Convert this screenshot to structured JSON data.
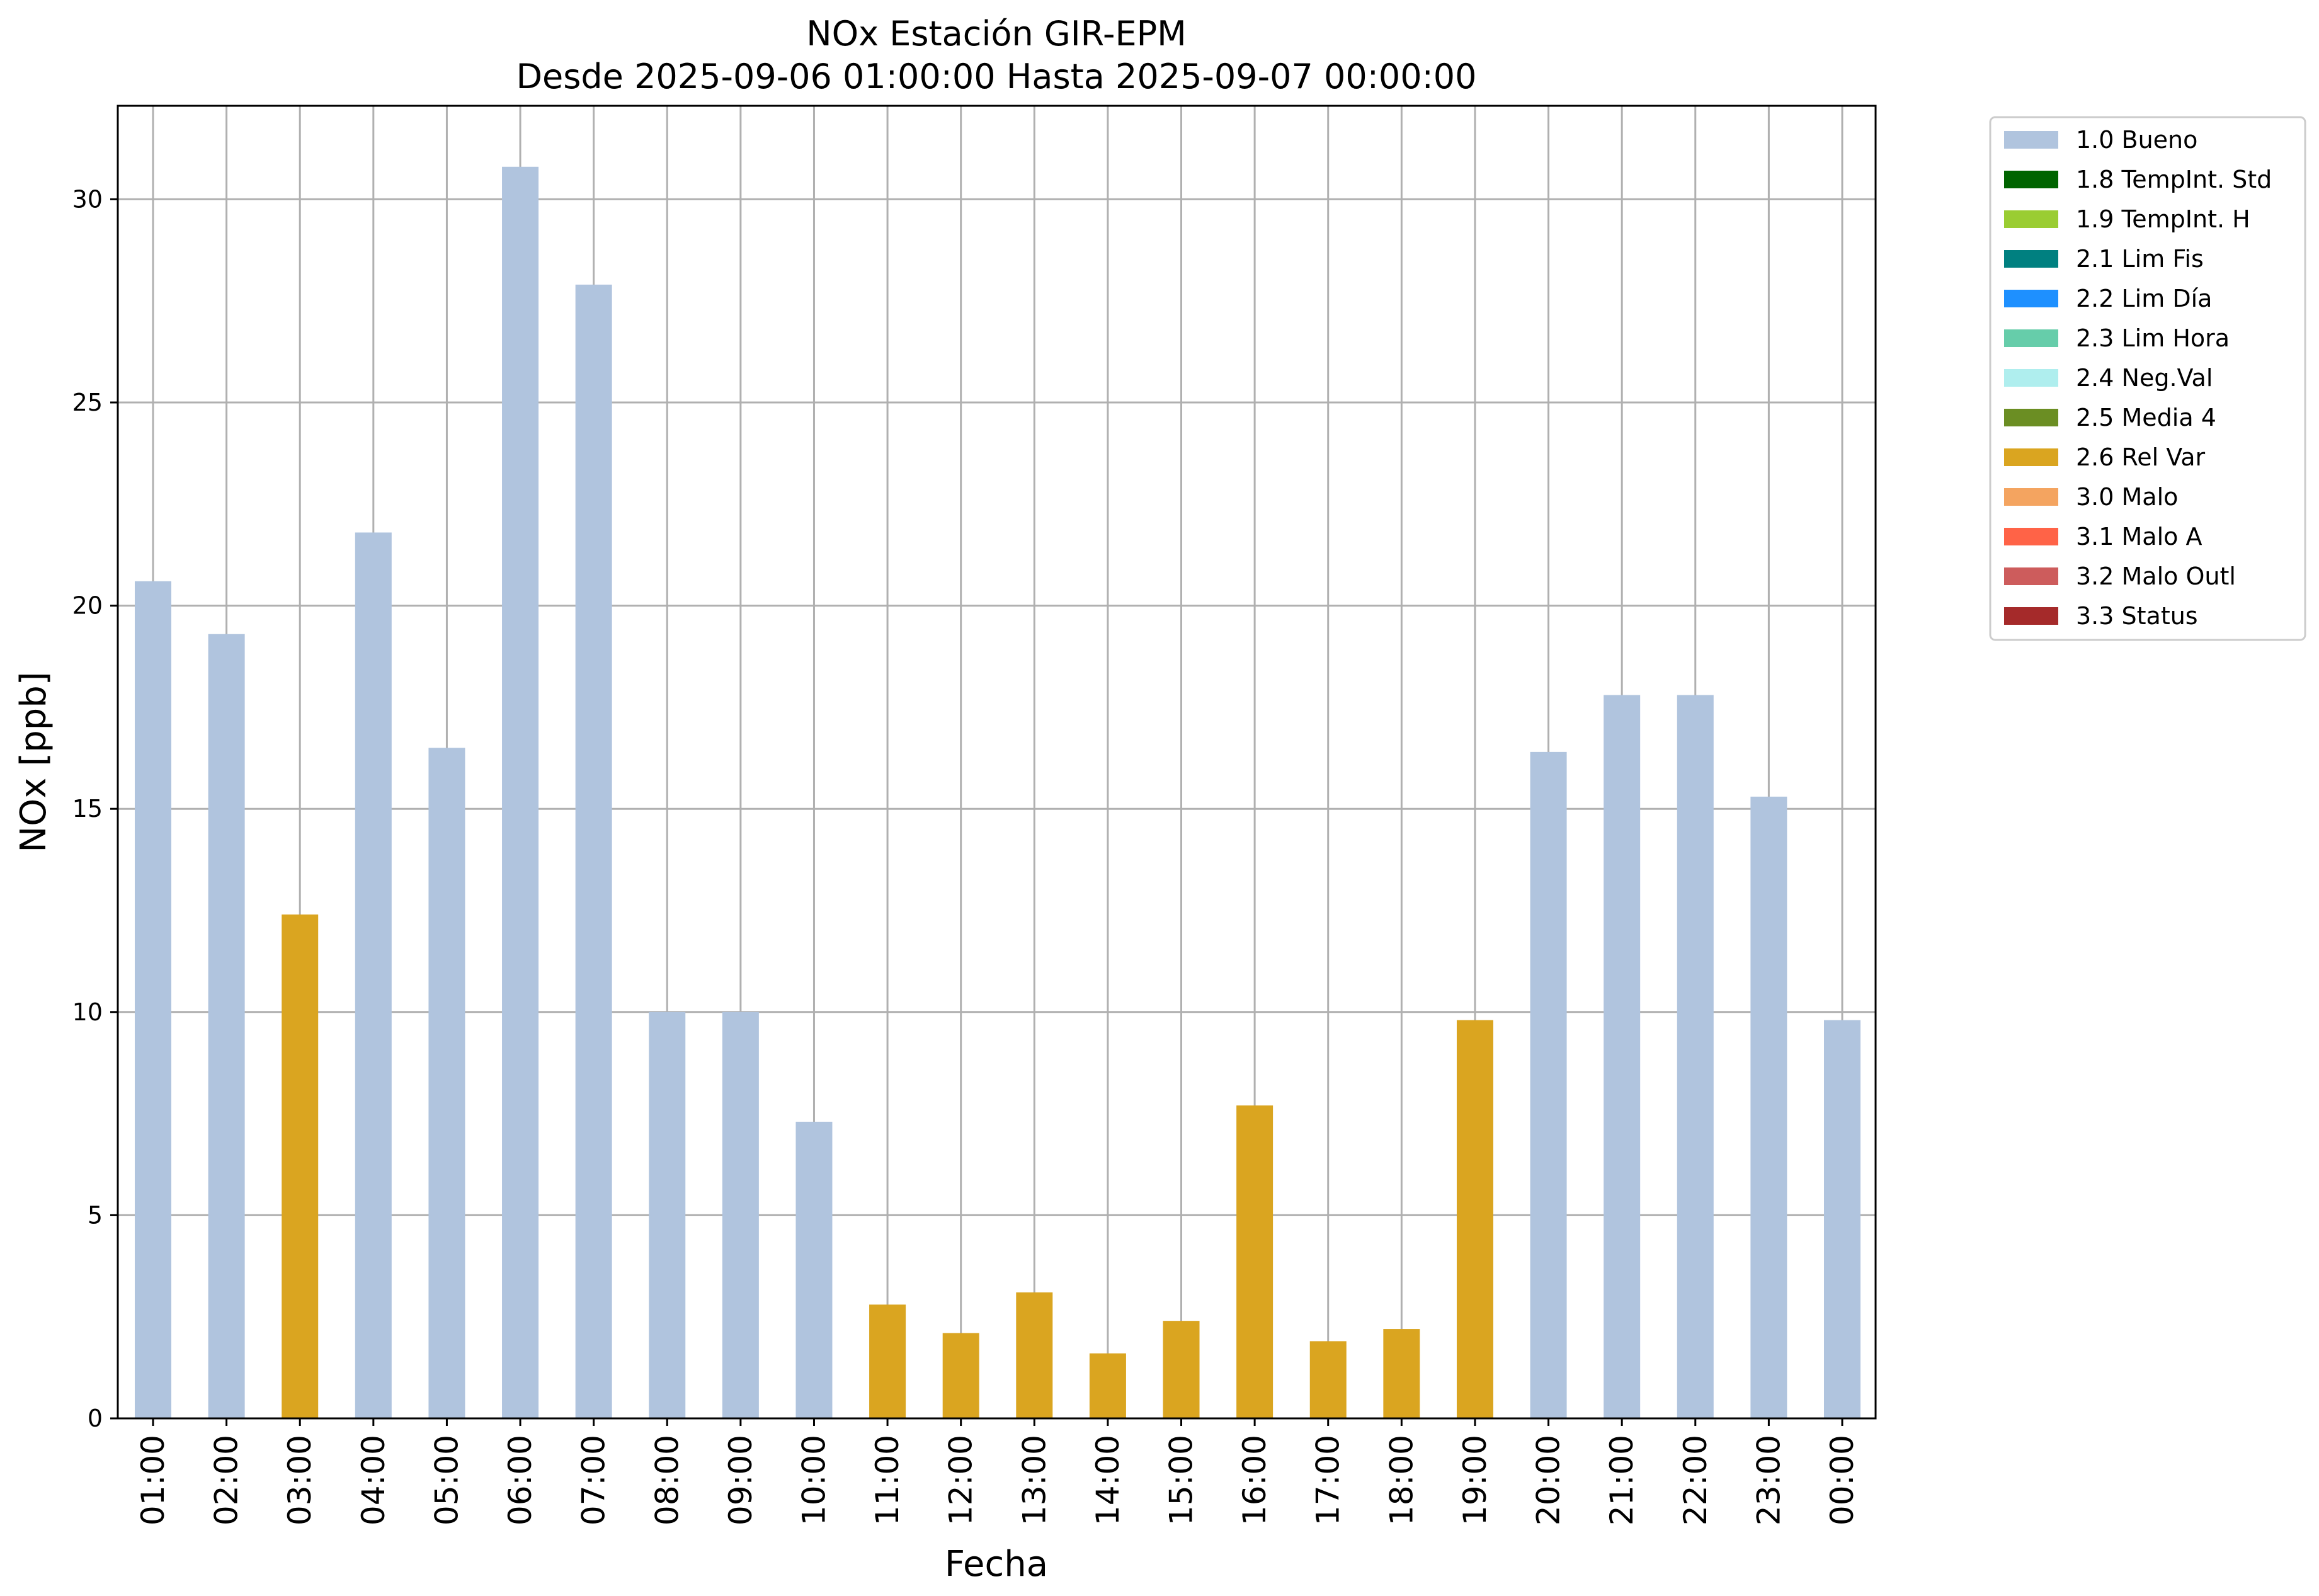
{
  "chart_data": {
    "type": "bar",
    "title": "NOx Estación GIR-EPM",
    "subtitle": "Desde 2025-09-06 01:00:00 Hasta 2025-09-07 00:00:00",
    "xlabel": "Fecha",
    "ylabel": "NOx [ppb]",
    "ylim": [
      0,
      32.3
    ],
    "yticks": [
      0,
      5,
      10,
      15,
      20,
      25,
      30
    ],
    "grid": true,
    "legend_position": "outside-top-right",
    "categories": [
      "01:00",
      "02:00",
      "03:00",
      "04:00",
      "05:00",
      "06:00",
      "07:00",
      "08:00",
      "09:00",
      "10:00",
      "11:00",
      "12:00",
      "13:00",
      "14:00",
      "15:00",
      "16:00",
      "17:00",
      "18:00",
      "19:00",
      "20:00",
      "21:00",
      "22:00",
      "23:00",
      "00:00"
    ],
    "values": [
      20.6,
      19.3,
      12.4,
      21.8,
      16.5,
      30.8,
      27.9,
      10.0,
      10.0,
      7.3,
      2.8,
      2.1,
      3.1,
      1.6,
      2.4,
      7.7,
      1.9,
      2.2,
      9.8,
      16.4,
      17.8,
      17.8,
      15.3,
      9.8
    ],
    "flags": [
      "1.0 Bueno",
      "1.0 Bueno",
      "2.6 Rel Var",
      "1.0 Bueno",
      "1.0 Bueno",
      "1.0 Bueno",
      "1.0 Bueno",
      "1.0 Bueno",
      "1.0 Bueno",
      "1.0 Bueno",
      "2.6 Rel Var",
      "2.6 Rel Var",
      "2.6 Rel Var",
      "2.6 Rel Var",
      "2.6 Rel Var",
      "2.6 Rel Var",
      "2.6 Rel Var",
      "2.6 Rel Var",
      "2.6 Rel Var",
      "1.0 Bueno",
      "1.0 Bueno",
      "1.0 Bueno",
      "1.0 Bueno",
      "1.0 Bueno"
    ],
    "legend": [
      {
        "label": "1.0 Bueno",
        "color": "#b0c4de"
      },
      {
        "label": "1.8 TempInt. Std",
        "color": "#006400"
      },
      {
        "label": "1.9 TempInt. H",
        "color": "#9acd32"
      },
      {
        "label": "2.1 Lim Fis",
        "color": "#008080"
      },
      {
        "label": "2.2 Lim Día",
        "color": "#1e90ff"
      },
      {
        "label": "2.3 Lim Hora",
        "color": "#66cdaa"
      },
      {
        "label": "2.4 Neg.Val",
        "color": "#afeeee"
      },
      {
        "label": "2.5 Media 4",
        "color": "#6b8e23"
      },
      {
        "label": "2.6 Rel Var",
        "color": "#daa520"
      },
      {
        "label": "3.0 Malo",
        "color": "#f4a460"
      },
      {
        "label": "3.1 Malo A",
        "color": "#ff6347"
      },
      {
        "label": "3.2 Malo Outl",
        "color": "#cd5c5c"
      },
      {
        "label": "3.3 Status",
        "color": "#a52a2a"
      }
    ]
  }
}
